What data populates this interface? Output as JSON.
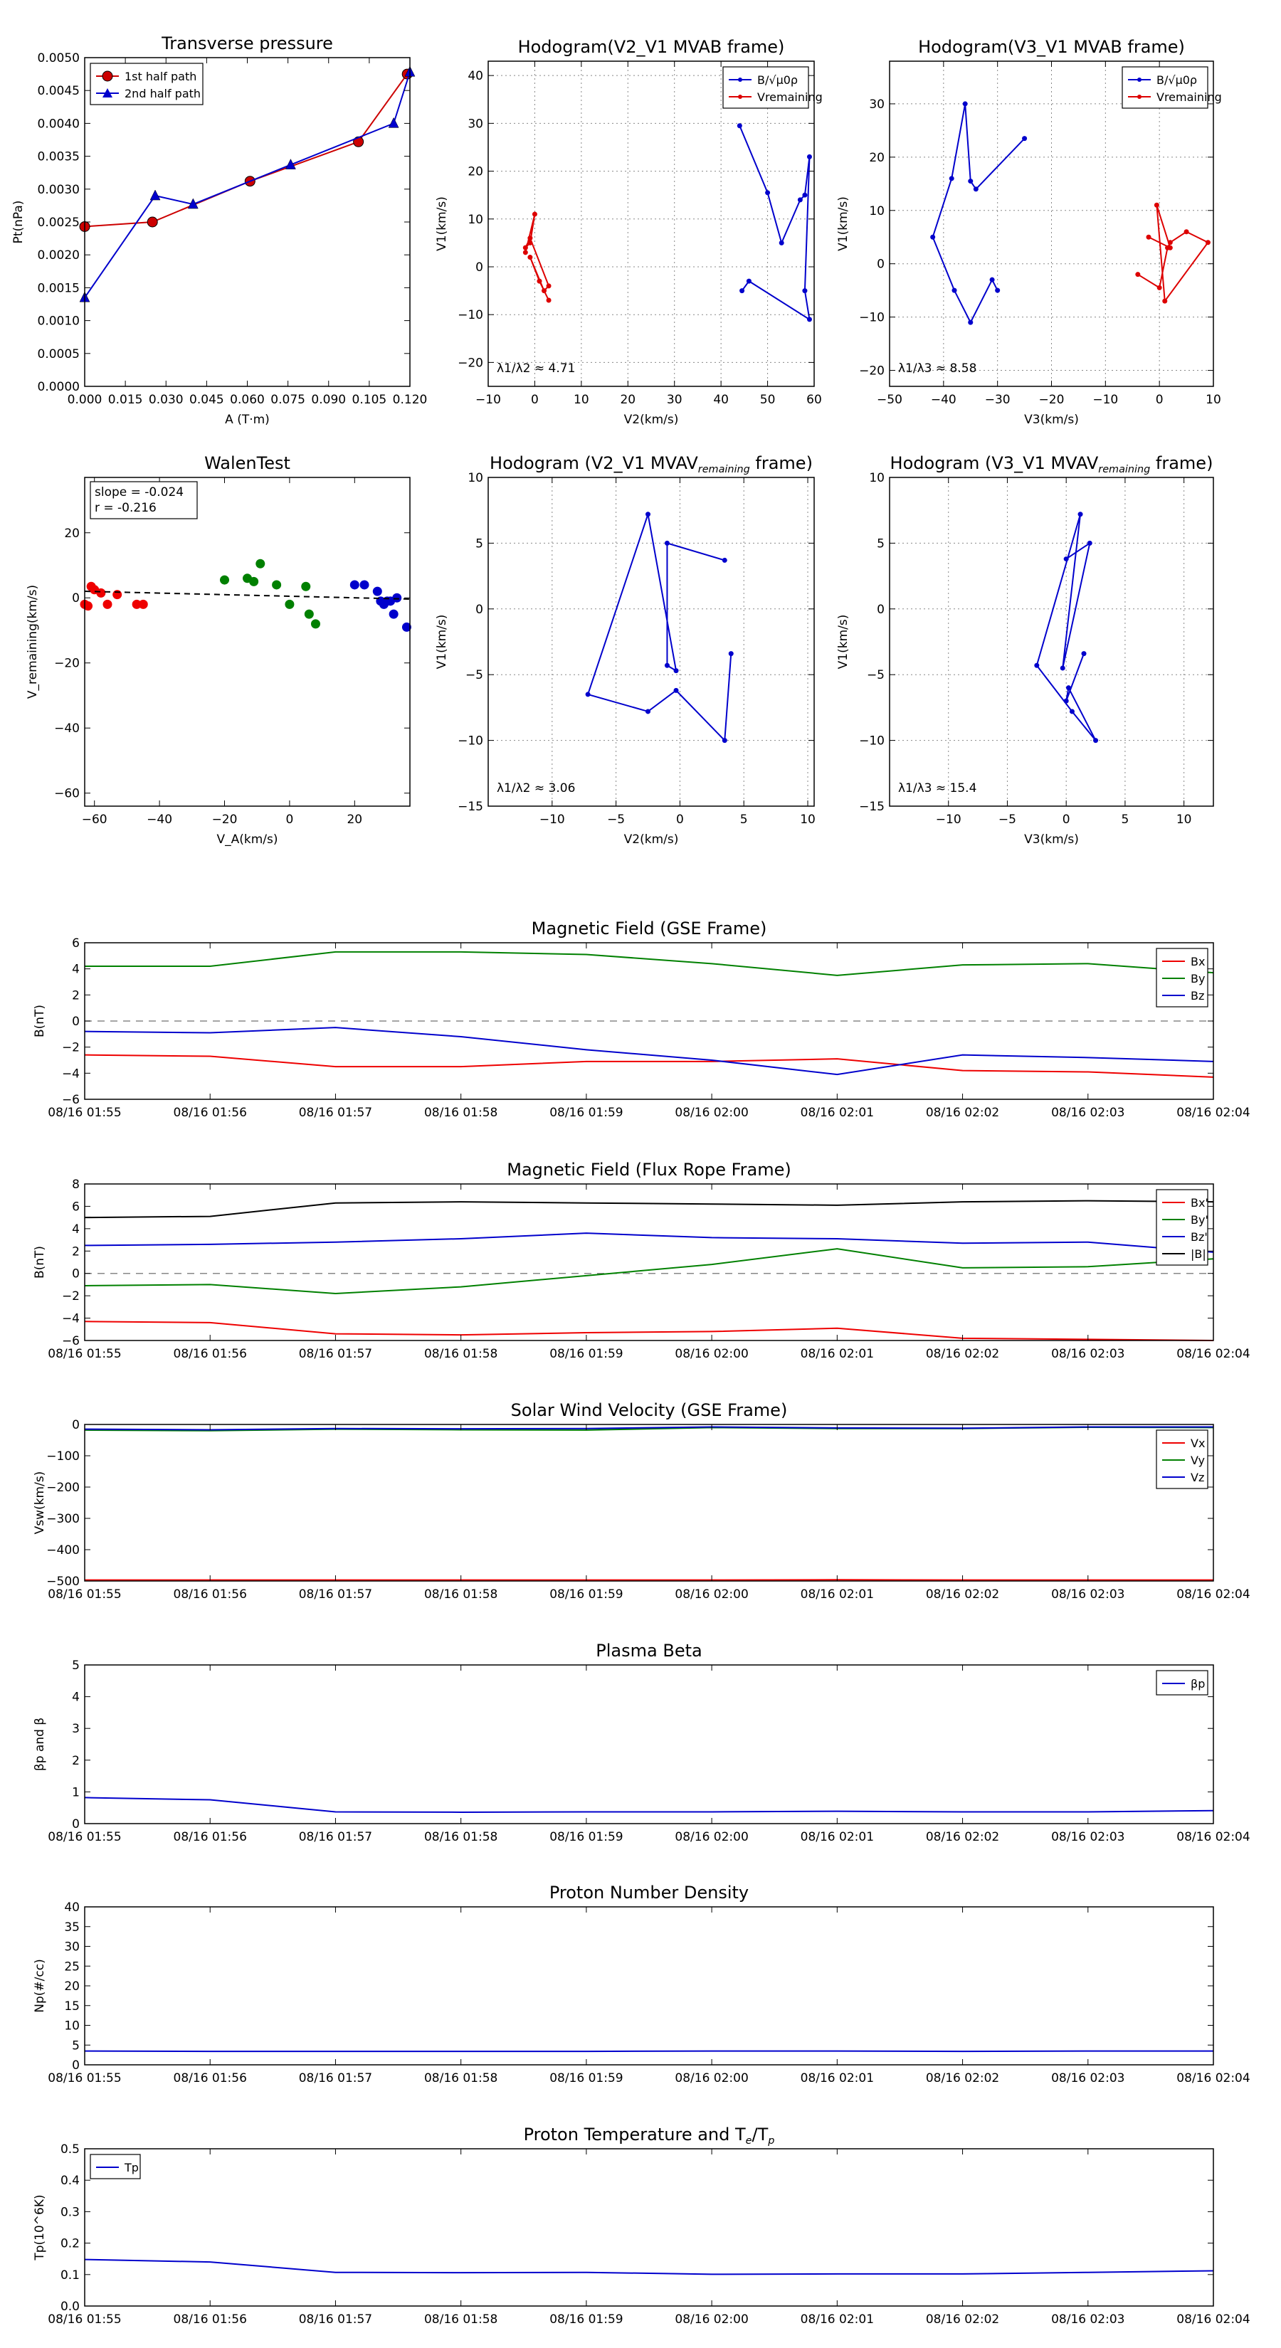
{
  "chart_data": [
    {
      "id": "transverse-pressure",
      "type": "line",
      "title": "Transverse pressure",
      "xlabel": "A (T·m)",
      "ylabel": "Pt(nPa)",
      "xlim": [
        0.0,
        0.12
      ],
      "ylim": [
        0.0,
        0.005
      ],
      "xticks": [
        0.0,
        0.015,
        0.03,
        0.045,
        0.06,
        0.075,
        0.09,
        0.105,
        0.12
      ],
      "xtick_labels": [
        "0.000",
        "0.015",
        "0.030",
        "0.045",
        "0.060",
        "0.075",
        "0.090",
        "0.105",
        "0.120"
      ],
      "yticks": [
        0,
        0.0005,
        0.001,
        0.0015,
        0.002,
        0.0025,
        0.003,
        0.0035,
        0.004,
        0.0045,
        0.005
      ],
      "ytick_labels": [
        "0.0000",
        "0.0005",
        "0.0010",
        "0.0015",
        "0.0020",
        "0.0025",
        "0.0030",
        "0.0035",
        "0.0040",
        "0.0045",
        "0.0050"
      ],
      "grid": false,
      "legend": "top-left",
      "series": [
        {
          "name": "1st half path",
          "color": "#cc0000",
          "marker": "circle",
          "x": [
            0.0,
            0.025,
            0.061,
            0.101,
            0.119
          ],
          "y": [
            0.00243,
            0.0025,
            0.00312,
            0.00372,
            0.00475
          ]
        },
        {
          "name": "2nd half path",
          "color": "#0000cc",
          "marker": "triangle",
          "x": [
            0.0,
            0.026,
            0.04,
            0.076,
            0.114,
            0.12
          ],
          "y": [
            0.00135,
            0.0029,
            0.00277,
            0.00337,
            0.004,
            0.00478
          ]
        }
      ]
    },
    {
      "id": "hodogram-v2v1-mvab",
      "type": "line",
      "title": "Hodogram(V2_V1 MVAB frame)",
      "xlabel": "V2(km/s)",
      "ylabel": "V1(km/s)",
      "xlim": [
        -10,
        60
      ],
      "ylim": [
        -25,
        43
      ],
      "xticks": [
        -10,
        0,
        10,
        20,
        30,
        40,
        50,
        60
      ],
      "xtick_labels": [
        "−10",
        "0",
        "10",
        "20",
        "30",
        "40",
        "50",
        "60"
      ],
      "yticks": [
        -20,
        -10,
        0,
        10,
        20,
        30,
        40
      ],
      "ytick_labels": [
        "−20",
        "−10",
        "0",
        "10",
        "20",
        "30",
        "40"
      ],
      "grid": true,
      "legend": "top-right",
      "annotation": "λ1/λ2 ≈ 4.71",
      "series": [
        {
          "name": "B/√μ0ρ",
          "color": "#0000cc",
          "marker": "dot",
          "x": [
            44,
            50,
            53,
            57,
            58,
            59,
            58,
            59,
            46,
            44.5
          ],
          "y": [
            29.5,
            15.5,
            5,
            14,
            15,
            23,
            -5,
            -11,
            -3,
            -5
          ]
        },
        {
          "name": "Vremaining",
          "color": "#dd0000",
          "marker": "dot",
          "x": [
            -2,
            0,
            -1,
            -2,
            -1,
            3,
            2,
            -1,
            1,
            3
          ],
          "y": [
            3,
            11,
            5,
            4,
            6,
            -4,
            -5,
            2,
            -3,
            -7
          ]
        }
      ]
    },
    {
      "id": "hodogram-v3v1-mvab",
      "type": "line",
      "title": "Hodogram(V3_V1 MVAB frame)",
      "xlabel": "V3(km/s)",
      "ylabel": "V1(km/s)",
      "xlim": [
        -50,
        10
      ],
      "ylim": [
        -23,
        38
      ],
      "xticks": [
        -50,
        -40,
        -30,
        -20,
        -10,
        0,
        10
      ],
      "xtick_labels": [
        "−50",
        "−40",
        "−30",
        "−20",
        "−10",
        "0",
        "10"
      ],
      "yticks": [
        -20,
        -10,
        0,
        10,
        20,
        30
      ],
      "ytick_labels": [
        "−20",
        "−10",
        "0",
        "10",
        "20",
        "30"
      ],
      "grid": true,
      "legend": "top-right",
      "annotation": "λ1/λ3 ≈ 8.58",
      "series": [
        {
          "name": "B/√μ0ρ",
          "color": "#0000cc",
          "marker": "dot",
          "x": [
            -25,
            -34,
            -35,
            -36,
            -38.5,
            -42,
            -38,
            -35,
            -31,
            -30
          ],
          "y": [
            23.5,
            14,
            15.5,
            30,
            16,
            5,
            -5,
            -11,
            -3,
            -5
          ]
        },
        {
          "name": "Vremaining",
          "color": "#dd0000",
          "marker": "dot",
          "x": [
            -4,
            0,
            1.5,
            2,
            5,
            9,
            1,
            -0.5,
            2,
            -2
          ],
          "y": [
            -2,
            -4.5,
            3,
            4,
            6,
            4,
            -7,
            11,
            3,
            5
          ]
        }
      ]
    },
    {
      "id": "walen-test",
      "type": "scatter",
      "title": "WalenTest",
      "xlabel": "V_A(km/s)",
      "ylabel": "V_remaining(km/s)",
      "xlim": [
        -63,
        37
      ],
      "ylim": [
        -64,
        37
      ],
      "xticks": [
        -60,
        -40,
        -20,
        0,
        20
      ],
      "xtick_labels": [
        "−60",
        "−40",
        "−20",
        "0",
        "20"
      ],
      "yticks": [
        -60,
        -40,
        -20,
        0,
        20
      ],
      "ytick_labels": [
        "−60",
        "−40",
        "−20",
        "0",
        "20"
      ],
      "grid": false,
      "stats_lines": [
        "slope = -0.024",
        "r = -0.216"
      ],
      "fit": {
        "slope": -0.024,
        "intercept": 0.5
      },
      "points": [
        {
          "color": "#ee0000",
          "x": [
            -63,
            -62,
            -61,
            -60,
            -58,
            -56,
            -53,
            -47,
            -45
          ],
          "y": [
            -2,
            -2.5,
            3.5,
            2.5,
            1.5,
            -2,
            1,
            -2,
            -2
          ]
        },
        {
          "color": "#008000",
          "x": [
            -20,
            -13,
            -11,
            -9,
            -4,
            0,
            5,
            6,
            8
          ],
          "y": [
            5.5,
            6,
            5,
            10.5,
            4,
            -2,
            3.5,
            -5,
            -8
          ]
        },
        {
          "color": "#0000cc",
          "x": [
            20,
            23,
            27,
            28,
            29,
            30,
            31,
            32,
            33,
            36
          ],
          "y": [
            4,
            4,
            2,
            -1,
            -2,
            -1,
            -1,
            -5,
            0,
            -9
          ]
        }
      ]
    },
    {
      "id": "hodogram-v2v1-mvav",
      "type": "line",
      "title": "Hodogram (V2_V1 MVAVremaining frame)",
      "title_main": "Hodogram (V2_V1 MVAV",
      "title_sub": "remaining",
      "title_tail": " frame)",
      "xlabel": "V2(km/s)",
      "ylabel": "V1(km/s)",
      "xlim": [
        -15,
        10.5
      ],
      "ylim": [
        -15,
        10
      ],
      "xticks": [
        -10,
        -5,
        0,
        5,
        10
      ],
      "xtick_labels": [
        "−10",
        "−5",
        "0",
        "5",
        "10"
      ],
      "yticks": [
        -15,
        -10,
        -5,
        0,
        5,
        10
      ],
      "ytick_labels": [
        "−15",
        "−10",
        "−5",
        "0",
        "5",
        "10"
      ],
      "grid": true,
      "annotation": "λ1/λ2 ≈ 3.06",
      "series": [
        {
          "name": "",
          "color": "#0000cc",
          "marker": "dot",
          "x": [
            3.5,
            -1,
            -1,
            -0.3,
            -2.5,
            -7.2,
            -2.5,
            -0.3,
            3.5,
            4
          ],
          "y": [
            3.7,
            5,
            -4.3,
            -4.7,
            7.2,
            -6.5,
            -7.8,
            -6.2,
            -10,
            -3.4
          ]
        }
      ]
    },
    {
      "id": "hodogram-v3v1-mvav",
      "type": "line",
      "title": "Hodogram (V3_V1 MVAVremaining frame)",
      "title_main": "Hodogram (V3_V1 MVAV",
      "title_sub": "remaining",
      "title_tail": " frame)",
      "xlabel": "V3(km/s)",
      "ylabel": "V1(km/s)",
      "xlim": [
        -15,
        12.5
      ],
      "ylim": [
        -15,
        10
      ],
      "xticks": [
        -10,
        -5,
        0,
        5,
        10
      ],
      "xtick_labels": [
        "−10",
        "−5",
        "0",
        "5",
        "10"
      ],
      "yticks": [
        -15,
        -10,
        -5,
        0,
        5,
        10
      ],
      "ytick_labels": [
        "−15",
        "−10",
        "−5",
        "0",
        "5",
        "10"
      ],
      "grid": true,
      "annotation": "λ1/λ3 ≈ 15.4",
      "series": [
        {
          "name": "",
          "color": "#0000cc",
          "marker": "dot",
          "x": [
            0,
            2,
            -0.3,
            1.2,
            -2.5,
            0.5,
            2.5,
            0.2,
            0,
            1.5
          ],
          "y": [
            3.8,
            5,
            -4.5,
            7.2,
            -4.3,
            -7.8,
            -10,
            -6,
            -7,
            -3.4
          ]
        }
      ]
    },
    {
      "id": "mag-gse",
      "type": "line",
      "title": "Magnetic Field (GSE Frame)",
      "xlabel": "",
      "ylabel": "B(nT)",
      "x": [
        "08/16 01:55",
        "08/16 01:56",
        "08/16 01:57",
        "08/16 01:58",
        "08/16 01:59",
        "08/16 02:00",
        "08/16 02:01",
        "08/16 02:02",
        "08/16 02:03",
        "08/16 02:04"
      ],
      "ylim": [
        -6,
        6
      ],
      "yticks": [
        -6,
        -4,
        -2,
        0,
        2,
        4,
        6
      ],
      "ytick_labels": [
        "−6",
        "−4",
        "−2",
        "0",
        "2",
        "4",
        "6"
      ],
      "zero_line": true,
      "legend": "top-right",
      "series": [
        {
          "name": "Bx",
          "color": "#ee0000",
          "values": [
            -2.6,
            -2.7,
            -3.5,
            -3.5,
            -3.1,
            -3.1,
            -2.9,
            -3.8,
            -3.9,
            -4.3
          ]
        },
        {
          "name": "By",
          "color": "#008000",
          "values": [
            4.2,
            4.2,
            5.3,
            5.3,
            5.1,
            4.4,
            3.5,
            4.3,
            4.4,
            3.7
          ]
        },
        {
          "name": "Bz",
          "color": "#0000cc",
          "values": [
            -0.8,
            -0.9,
            -0.5,
            -1.2,
            -2.2,
            -3.0,
            -4.1,
            -2.6,
            -2.8,
            -3.1
          ]
        }
      ]
    },
    {
      "id": "mag-fluxrope",
      "type": "line",
      "title": "Magnetic Field (Flux Rope Frame)",
      "xlabel": "",
      "ylabel": "B(nT)",
      "x": [
        "08/16 01:55",
        "08/16 01:56",
        "08/16 01:57",
        "08/16 01:58",
        "08/16 01:59",
        "08/16 02:00",
        "08/16 02:01",
        "08/16 02:02",
        "08/16 02:03",
        "08/16 02:04"
      ],
      "ylim": [
        -6,
        8
      ],
      "yticks": [
        -6,
        -4,
        -2,
        0,
        2,
        4,
        6,
        8
      ],
      "ytick_labels": [
        "−6",
        "−4",
        "−2",
        "0",
        "2",
        "4",
        "6",
        "8"
      ],
      "zero_line": true,
      "legend": "top-right",
      "series": [
        {
          "name": "Bx'",
          "color": "#ee0000",
          "values": [
            -4.3,
            -4.4,
            -5.4,
            -5.5,
            -5.3,
            -5.2,
            -4.9,
            -5.8,
            -5.9,
            -6.0
          ]
        },
        {
          "name": "By'",
          "color": "#008000",
          "values": [
            -1.1,
            -1.0,
            -1.8,
            -1.2,
            -0.2,
            0.8,
            2.2,
            0.5,
            0.6,
            1.3
          ]
        },
        {
          "name": "Bz'",
          "color": "#0000cc",
          "values": [
            2.5,
            2.6,
            2.8,
            3.1,
            3.6,
            3.2,
            3.1,
            2.7,
            2.8,
            1.9
          ]
        },
        {
          "name": "|B|",
          "color": "#000000",
          "values": [
            5.0,
            5.1,
            6.3,
            6.4,
            6.3,
            6.2,
            6.1,
            6.4,
            6.5,
            6.4
          ]
        }
      ]
    },
    {
      "id": "sw-velocity",
      "type": "line",
      "title": "Solar Wind Velocity (GSE Frame)",
      "xlabel": "",
      "ylabel": "Vsw(km/s)",
      "x": [
        "08/16 01:55",
        "08/16 01:56",
        "08/16 01:57",
        "08/16 01:58",
        "08/16 01:59",
        "08/16 02:00",
        "08/16 02:01",
        "08/16 02:02",
        "08/16 02:03",
        "08/16 02:04"
      ],
      "ylim": [
        -500,
        0
      ],
      "yticks": [
        -500,
        -400,
        -300,
        -200,
        -100,
        0
      ],
      "ytick_labels": [
        "−500",
        "−400",
        "−300",
        "−200",
        "−100",
        "0"
      ],
      "legend": "top-right",
      "series": [
        {
          "name": "Vx",
          "color": "#ee0000",
          "values": [
            -497,
            -497,
            -497,
            -497,
            -497,
            -497,
            -496,
            -497,
            -497,
            -497
          ]
        },
        {
          "name": "Vy",
          "color": "#008000",
          "values": [
            -18,
            -20,
            -15,
            -17,
            -18,
            -10,
            -13,
            -13,
            -9,
            -10
          ]
        },
        {
          "name": "Vz",
          "color": "#0000cc",
          "values": [
            -15,
            -17,
            -13,
            -14,
            -13,
            -8,
            -11,
            -12,
            -8,
            -8
          ]
        }
      ]
    },
    {
      "id": "plasma-beta",
      "type": "line",
      "title": "Plasma Beta",
      "xlabel": "",
      "ylabel": "βp and β",
      "x": [
        "08/16 01:55",
        "08/16 01:56",
        "08/16 01:57",
        "08/16 01:58",
        "08/16 01:59",
        "08/16 02:00",
        "08/16 02:01",
        "08/16 02:02",
        "08/16 02:03",
        "08/16 02:04"
      ],
      "ylim": [
        0,
        5
      ],
      "yticks": [
        0,
        1,
        2,
        3,
        4,
        5
      ],
      "ytick_labels": [
        "0",
        "1",
        "2",
        "3",
        "4",
        "5"
      ],
      "legend": "top-right",
      "series": [
        {
          "name": "βp",
          "color": "#0000cc",
          "values": [
            0.82,
            0.75,
            0.37,
            0.36,
            0.37,
            0.37,
            0.39,
            0.37,
            0.37,
            0.41
          ]
        }
      ]
    },
    {
      "id": "proton-density",
      "type": "line",
      "title": "Proton Number Density",
      "xlabel": "",
      "ylabel": "Np(#/cc)",
      "x": [
        "08/16 01:55",
        "08/16 01:56",
        "08/16 01:57",
        "08/16 01:58",
        "08/16 01:59",
        "08/16 02:00",
        "08/16 02:01",
        "08/16 02:02",
        "08/16 02:03",
        "08/16 02:04"
      ],
      "ylim": [
        0,
        40
      ],
      "yticks": [
        0,
        5,
        10,
        15,
        20,
        25,
        30,
        35,
        40
      ],
      "ytick_labels": [
        "0",
        "5",
        "10",
        "15",
        "20",
        "25",
        "30",
        "35",
        "40"
      ],
      "series": [
        {
          "name": "",
          "color": "#0000cc",
          "values": [
            3.5,
            3.4,
            3.4,
            3.4,
            3.4,
            3.5,
            3.5,
            3.4,
            3.5,
            3.5
          ]
        }
      ]
    },
    {
      "id": "proton-temp",
      "type": "line",
      "title": "Proton Temperature and Te/Tp",
      "title_main": "Proton Temperature and T",
      "title_sub1": "e",
      "title_mid": "/T",
      "title_sub2": "p",
      "xlabel": "",
      "ylabel": "Tp(10^6K)",
      "x": [
        "08/16 01:55",
        "08/16 01:56",
        "08/16 01:57",
        "08/16 01:58",
        "08/16 01:59",
        "08/16 02:00",
        "08/16 02:01",
        "08/16 02:02",
        "08/16 02:03",
        "08/16 02:04"
      ],
      "ylim": [
        0,
        0.5
      ],
      "yticks": [
        0,
        0.1,
        0.2,
        0.3,
        0.4,
        0.5
      ],
      "ytick_labels": [
        "0.0",
        "0.1",
        "0.2",
        "0.3",
        "0.4",
        "0.5"
      ],
      "legend": "top-left",
      "series": [
        {
          "name": "Tp",
          "color": "#0000cc",
          "values": [
            0.148,
            0.14,
            0.107,
            0.106,
            0.107,
            0.101,
            0.102,
            0.102,
            0.107,
            0.112
          ]
        }
      ]
    }
  ]
}
